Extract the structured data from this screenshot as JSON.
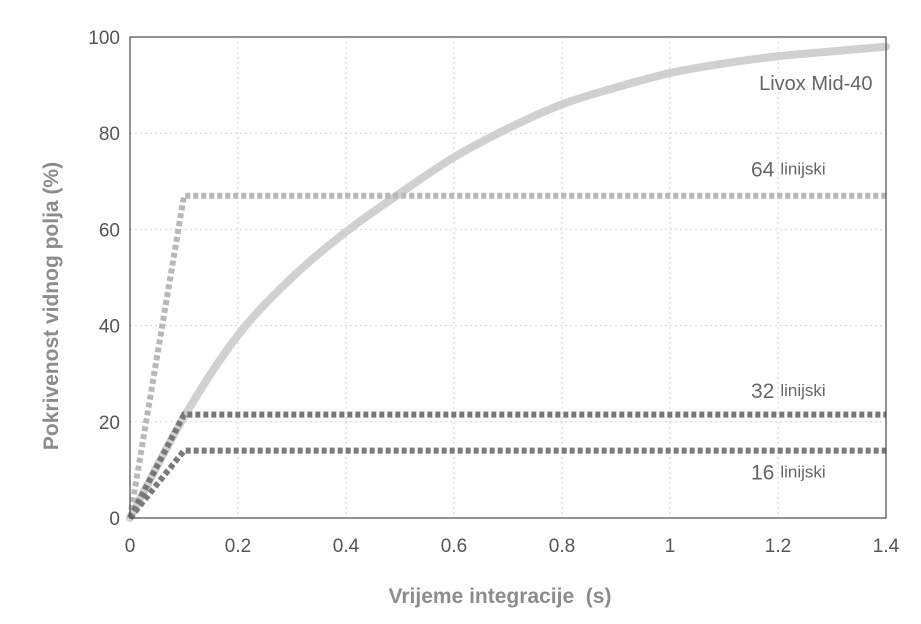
{
  "chart_data": {
    "type": "line",
    "xlabel": "Vrijeme integracije  (s)",
    "ylabel": "Pokrivenost vidnog polja (%)",
    "xlim": [
      0,
      1.4
    ],
    "ylim": [
      0,
      100
    ],
    "x_ticks": [
      "0",
      "0.2",
      "0.4",
      "0.6",
      "0.8",
      "1",
      "1.2",
      "1.4"
    ],
    "y_ticks": [
      "0",
      "20",
      "40",
      "60",
      "80",
      "100"
    ],
    "grid": true,
    "series": [
      {
        "name": "Livox Mid-40",
        "style": "solid",
        "color": "#d0d0d0",
        "points": [
          [
            0,
            0
          ],
          [
            0.1,
            21
          ],
          [
            0.2,
            38
          ],
          [
            0.3,
            50
          ],
          [
            0.4,
            59.5
          ],
          [
            0.5,
            67.5
          ],
          [
            0.6,
            75
          ],
          [
            0.7,
            81
          ],
          [
            0.8,
            86
          ],
          [
            0.9,
            89.5
          ],
          [
            1.0,
            92.5
          ],
          [
            1.1,
            94.5
          ],
          [
            1.2,
            96
          ],
          [
            1.3,
            97
          ],
          [
            1.4,
            98
          ]
        ]
      },
      {
        "name": "64 linijski",
        "style": "dotted",
        "color": "#b8b8b8",
        "points": [
          [
            0,
            0
          ],
          [
            0.1,
            67
          ],
          [
            1.4,
            67
          ]
        ]
      },
      {
        "name": "32 linijski",
        "style": "dotted",
        "color": "#777777",
        "points": [
          [
            0,
            0
          ],
          [
            0.1,
            21.5
          ],
          [
            1.4,
            21.5
          ]
        ]
      },
      {
        "name": "16 linijski",
        "style": "dotted",
        "color": "#7a7a7a",
        "points": [
          [
            0,
            0
          ],
          [
            0.1,
            14
          ],
          [
            1.4,
            14
          ]
        ]
      }
    ],
    "annotations": [
      {
        "parts": [
          "Livox Mid-40"
        ],
        "x": 1.27,
        "y": 89
      },
      {
        "parts": [
          "64",
          "linijski"
        ],
        "x": 1.15,
        "y": 71
      },
      {
        "parts": [
          "32",
          "linijski"
        ],
        "x": 1.15,
        "y": 25
      },
      {
        "parts": [
          "16",
          "linijski"
        ],
        "x": 1.15,
        "y": 8
      }
    ]
  }
}
